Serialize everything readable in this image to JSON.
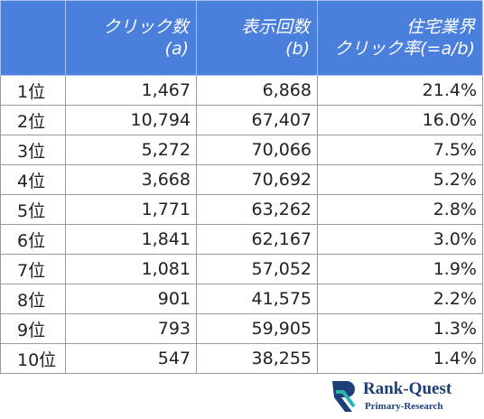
{
  "table": {
    "headers": [
      [
        "クリック数",
        "(a)"
      ],
      [
        "表示回数",
        "(b)"
      ],
      [
        "住宅業界",
        "クリック率(=a/b)"
      ]
    ],
    "rows": [
      [
        "1位",
        "1,467",
        "6,868",
        "21.4%"
      ],
      [
        "2位",
        "10,794",
        "67,407",
        "16.0%"
      ],
      [
        "3位",
        "5,272",
        "70,066",
        "7.5%"
      ],
      [
        "4位",
        "3,668",
        "70,692",
        "5.2%"
      ],
      [
        "5位",
        "1,771",
        "63,262",
        "2.8%"
      ],
      [
        "6位",
        "1,841",
        "62,167",
        "3.0%"
      ],
      [
        "7位",
        "1,081",
        "57,052",
        "1.9%"
      ],
      [
        "8位",
        "901",
        "41,575",
        "2.2%"
      ],
      [
        "9位",
        "793",
        "59,905",
        "1.3%"
      ],
      [
        "10位",
        "547",
        "38,255",
        "1.4%"
      ]
    ]
  },
  "logo": {
    "name": "Rank-Quest",
    "tagline": "Primary-Research"
  }
}
